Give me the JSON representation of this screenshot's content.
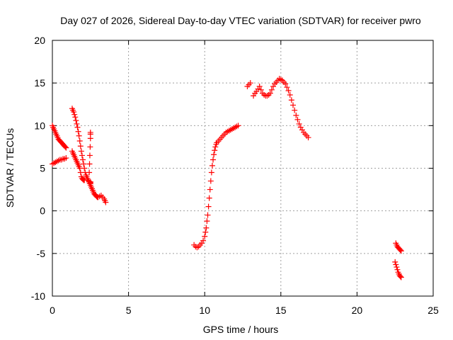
{
  "chart_data": {
    "type": "scatter",
    "title": "Day 027 of 2026, Sidereal Day-to-day VTEC variation (SDTVAR) for receiver pwro",
    "xlabel": "GPS time / hours",
    "ylabel": "SDTVAR / TECUs",
    "xlim": [
      0,
      25
    ],
    "ylim": [
      -10,
      20
    ],
    "xticks": [
      0,
      5,
      10,
      15,
      20,
      25
    ],
    "yticks": [
      -10,
      -5,
      0,
      5,
      10,
      15,
      20
    ],
    "grid": true,
    "marker": "+",
    "series": [
      {
        "name": "SDTVAR",
        "color": "#ff0000",
        "x": [
          0.0,
          0.05,
          0.1,
          0.15,
          0.2,
          0.25,
          0.3,
          0.35,
          0.4,
          0.45,
          0.5,
          0.55,
          0.6,
          0.65,
          0.7,
          0.75,
          0.8,
          0.85,
          0.9,
          0.0,
          0.1,
          0.2,
          0.3,
          0.4,
          0.5,
          0.6,
          0.7,
          0.8,
          0.9,
          1.3,
          1.35,
          1.4,
          1.45,
          1.5,
          1.55,
          1.6,
          1.65,
          1.7,
          1.75,
          1.8,
          1.85,
          1.9,
          1.95,
          2.0,
          2.05,
          2.1,
          2.15,
          2.2,
          2.25,
          2.3,
          2.35,
          2.4,
          2.45,
          2.5,
          2.55,
          2.6,
          2.65,
          2.7,
          2.75,
          2.8,
          2.85,
          2.9,
          2.95,
          3.0,
          3.1,
          3.2,
          3.3,
          3.4,
          3.45,
          3.5,
          1.3,
          1.35,
          1.4,
          1.45,
          1.5,
          1.55,
          1.6,
          1.65,
          1.7,
          1.75,
          1.8,
          1.85,
          1.9,
          1.95,
          2.0,
          2.05,
          2.1,
          2.4,
          2.42,
          2.44,
          2.46,
          2.48,
          2.5,
          2.5,
          2.5,
          2.5,
          2.5,
          2.5,
          9.3,
          9.4,
          9.5,
          9.6,
          9.7,
          9.8,
          9.9,
          10.0,
          10.05,
          10.1,
          10.15,
          10.2,
          10.25,
          10.3,
          10.35,
          10.4,
          10.45,
          10.5,
          10.55,
          10.6,
          10.65,
          10.7,
          10.75,
          10.8,
          10.9,
          11.0,
          11.1,
          11.2,
          11.3,
          11.4,
          11.5,
          11.6,
          11.7,
          11.8,
          11.9,
          12.0,
          12.1,
          12.2,
          12.8,
          12.9,
          13.0,
          13.2,
          13.3,
          13.4,
          13.5,
          13.6,
          13.7,
          13.8,
          13.9,
          14.0,
          14.1,
          14.2,
          14.3,
          14.4,
          14.5,
          14.6,
          14.7,
          14.8,
          14.9,
          15.0,
          15.1,
          15.2,
          15.3,
          15.4,
          15.5,
          15.6,
          15.7,
          15.8,
          15.9,
          16.0,
          16.1,
          16.2,
          16.3,
          16.4,
          16.5,
          16.6,
          16.7,
          16.8,
          22.5,
          22.55,
          22.6,
          22.65,
          22.7,
          22.75,
          22.8,
          22.85,
          22.9,
          22.55,
          22.6,
          22.65,
          22.7,
          22.75,
          22.8,
          22.85,
          22.9
        ],
        "y": [
          10.0,
          9.8,
          9.6,
          9.4,
          9.2,
          9.0,
          8.8,
          8.6,
          8.4,
          8.3,
          8.2,
          8.1,
          8.0,
          7.9,
          7.8,
          7.7,
          7.6,
          7.5,
          7.4,
          5.5,
          5.6,
          5.7,
          5.8,
          5.9,
          6.0,
          6.0,
          6.1,
          6.1,
          6.2,
          12.0,
          11.8,
          11.6,
          11.3,
          11.0,
          10.6,
          10.2,
          9.8,
          9.3,
          8.8,
          8.2,
          7.6,
          7.0,
          6.5,
          6.0,
          5.5,
          5.0,
          4.5,
          4.2,
          4.0,
          3.8,
          3.6,
          3.4,
          3.2,
          3.0,
          2.8,
          2.6,
          2.4,
          2.2,
          2.0,
          1.9,
          1.8,
          1.7,
          1.6,
          1.6,
          1.7,
          1.8,
          1.6,
          1.4,
          1.2,
          1.0,
          7.0,
          6.8,
          6.6,
          6.4,
          6.2,
          6.0,
          5.8,
          5.6,
          5.4,
          5.2,
          5.0,
          4.5,
          4.0,
          3.8,
          3.7,
          3.6,
          3.6,
          3.5,
          4.5,
          5.5,
          6.5,
          7.5,
          8.5,
          9.0,
          9.2,
          3.4,
          3.3,
          3.2,
          -4.0,
          -4.2,
          -4.3,
          -4.2,
          -4.0,
          -3.8,
          -3.5,
          -3.0,
          -2.5,
          -2.0,
          -1.2,
          -0.5,
          0.5,
          1.5,
          2.5,
          3.5,
          4.5,
          5.3,
          6.0,
          6.6,
          7.1,
          7.5,
          7.8,
          8.0,
          8.2,
          8.4,
          8.6,
          8.8,
          9.0,
          9.2,
          9.3,
          9.4,
          9.5,
          9.6,
          9.7,
          9.8,
          9.9,
          10.0,
          14.6,
          14.8,
          15.0,
          13.5,
          13.8,
          14.0,
          14.3,
          14.6,
          14.2,
          13.8,
          13.6,
          13.5,
          13.5,
          13.6,
          13.8,
          14.2,
          14.6,
          14.9,
          15.1,
          15.3,
          15.5,
          15.4,
          15.3,
          15.1,
          14.9,
          14.5,
          14.1,
          13.6,
          13.0,
          12.4,
          11.8,
          11.2,
          10.7,
          10.2,
          9.8,
          9.5,
          9.2,
          9.0,
          8.8,
          8.6,
          -6.0,
          -6.3,
          -6.6,
          -6.9,
          -7.2,
          -7.4,
          -7.6,
          -7.7,
          -7.8,
          -3.8,
          -4.0,
          -4.2,
          -4.3,
          -4.4,
          -4.5,
          -4.6,
          -4.7
        ]
      }
    ]
  }
}
